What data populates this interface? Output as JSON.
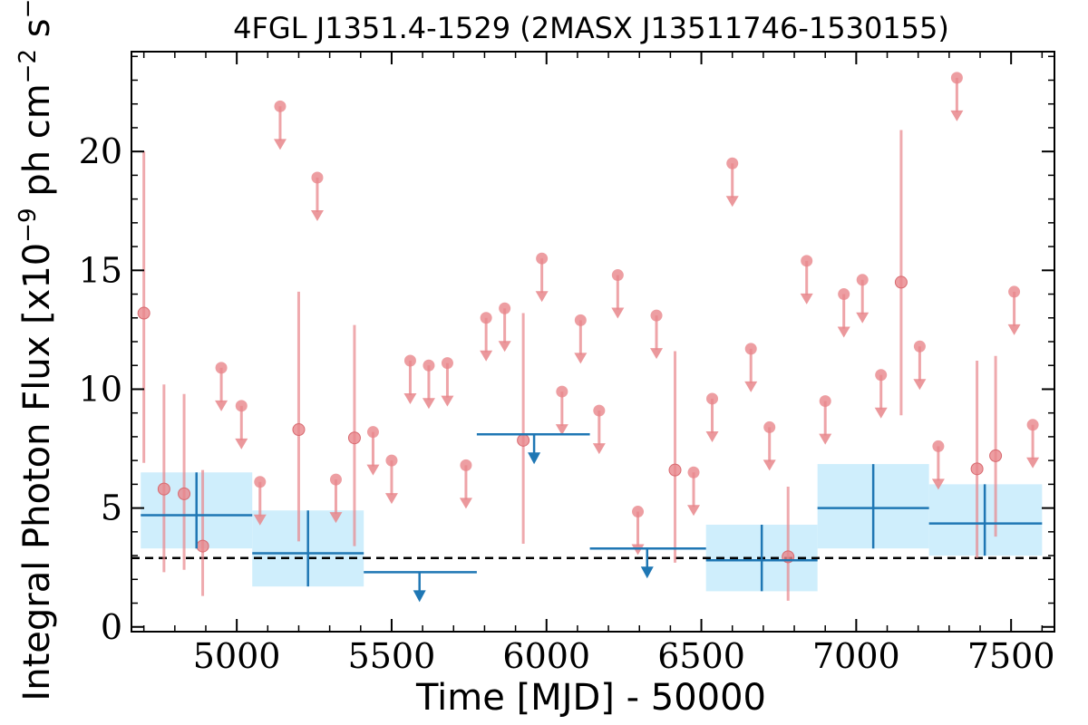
{
  "chart_data": {
    "type": "scatter",
    "title": "4FGL J1351.4-1529 (2MASX J13511746-1530155)",
    "xlabel": "Time [MJD] - 50000",
    "ylabel": "Integral Photon Flux [x10$^{-9}$ ph cm$^{-2}$ s$^{-1}$]",
    "ylabel_parts": {
      "main": "Integral Photon Flux [x10",
      "exp1": "−9",
      "mid": " ph cm",
      "exp2": "−2",
      "s": " s",
      "exp3": "−1",
      "end": "]"
    },
    "xlim": [
      4660,
      7640
    ],
    "ylim": [
      -0.2,
      24.2
    ],
    "x_ticks": [
      5000,
      5500,
      6000,
      6500,
      7000,
      7500
    ],
    "y_ticks": [
      0,
      5,
      10,
      15,
      20
    ],
    "x_tick_labels": [
      "5000",
      "5500",
      "6000",
      "6500",
      "7000",
      "7500"
    ],
    "y_tick_labels": [
      "0",
      "5",
      "10",
      "15",
      "20"
    ],
    "grid": false,
    "reference_line": {
      "y": 2.9,
      "style": "dashed",
      "color": "#000000"
    },
    "colors": {
      "short_bins": "#e8868b",
      "long_bins": "#1f77b4",
      "long_bins_band": "#cfeefc"
    },
    "short_bin_points": [
      {
        "x": 4700,
        "y": 13.2,
        "lo": 6.9,
        "hi": 20.0
      },
      {
        "x": 4765,
        "y": 5.8,
        "lo": 2.3,
        "hi": 10.2
      },
      {
        "x": 4830,
        "y": 5.6,
        "lo": 2.4,
        "hi": 9.8
      },
      {
        "x": 4890,
        "y": 3.4,
        "lo": 1.3,
        "hi": 6.6
      },
      {
        "x": 5200,
        "y": 8.3,
        "lo": 3.6,
        "hi": 14.1
      },
      {
        "x": 5380,
        "y": 7.95,
        "lo": 3.4,
        "hi": 12.7
      },
      {
        "x": 5925,
        "y": 7.85,
        "lo": 3.5,
        "hi": 13.2
      },
      {
        "x": 6415,
        "y": 6.6,
        "lo": 2.7,
        "hi": 11.6
      },
      {
        "x": 6780,
        "y": 2.95,
        "lo": 1.1,
        "hi": 5.9
      },
      {
        "x": 7145,
        "y": 14.5,
        "lo": 8.9,
        "hi": 20.9
      },
      {
        "x": 7390,
        "y": 6.65,
        "lo": 2.9,
        "hi": 11.2
      },
      {
        "x": 7450,
        "y": 7.2,
        "lo": 3.8,
        "hi": 11.4
      }
    ],
    "short_bin_upper_limits": [
      {
        "x": 4950,
        "y": 10.9
      },
      {
        "x": 5015,
        "y": 9.3
      },
      {
        "x": 5075,
        "y": 6.1
      },
      {
        "x": 5140,
        "y": 21.9
      },
      {
        "x": 5260,
        "y": 18.9
      },
      {
        "x": 5320,
        "y": 6.2
      },
      {
        "x": 5440,
        "y": 8.2
      },
      {
        "x": 5500,
        "y": 7.0
      },
      {
        "x": 5560,
        "y": 11.2
      },
      {
        "x": 5620,
        "y": 11.0
      },
      {
        "x": 5680,
        "y": 11.1
      },
      {
        "x": 5740,
        "y": 6.8
      },
      {
        "x": 5805,
        "y": 13.0
      },
      {
        "x": 5865,
        "y": 13.4
      },
      {
        "x": 5985,
        "y": 15.5
      },
      {
        "x": 6050,
        "y": 9.9
      },
      {
        "x": 6170,
        "y": 9.1
      },
      {
        "x": 6110,
        "y": 12.9
      },
      {
        "x": 6230,
        "y": 14.8
      },
      {
        "x": 6295,
        "y": 4.85
      },
      {
        "x": 6355,
        "y": 13.1
      },
      {
        "x": 6475,
        "y": 6.5
      },
      {
        "x": 6535,
        "y": 9.6
      },
      {
        "x": 6600,
        "y": 19.5
      },
      {
        "x": 6660,
        "y": 11.7
      },
      {
        "x": 6720,
        "y": 8.4
      },
      {
        "x": 6840,
        "y": 15.4
      },
      {
        "x": 6900,
        "y": 9.5
      },
      {
        "x": 6960,
        "y": 14.0
      },
      {
        "x": 7020,
        "y": 14.6
      },
      {
        "x": 7080,
        "y": 10.6
      },
      {
        "x": 7205,
        "y": 11.8
      },
      {
        "x": 7265,
        "y": 7.6
      },
      {
        "x": 7325,
        "y": 23.1
      },
      {
        "x": 7510,
        "y": 14.1
      },
      {
        "x": 7570,
        "y": 8.5
      }
    ],
    "long_bins": [
      {
        "x0": 4690,
        "x1": 5050,
        "xc": 4870,
        "y": 4.7,
        "lo": 3.3,
        "hi": 6.5
      },
      {
        "x0": 5050,
        "x1": 5410,
        "xc": 5230,
        "y": 3.1,
        "lo": 1.7,
        "hi": 4.9
      },
      {
        "x0": 6515,
        "x1": 6875,
        "xc": 6695,
        "y": 2.8,
        "lo": 1.5,
        "hi": 4.3
      },
      {
        "x0": 6875,
        "x1": 7235,
        "xc": 7055,
        "y": 5.0,
        "lo": 3.3,
        "hi": 6.85
      },
      {
        "x0": 7235,
        "x1": 7600,
        "xc": 7415,
        "y": 4.35,
        "lo": 3.0,
        "hi": 6.0
      }
    ],
    "long_bin_upper_limits": [
      {
        "x0": 5410,
        "x1": 5775,
        "xc": 5590,
        "y": 2.3
      },
      {
        "x0": 5775,
        "x1": 6140,
        "xc": 5960,
        "y": 8.1
      },
      {
        "x0": 6140,
        "x1": 6515,
        "xc": 6325,
        "y": 3.3
      }
    ]
  }
}
